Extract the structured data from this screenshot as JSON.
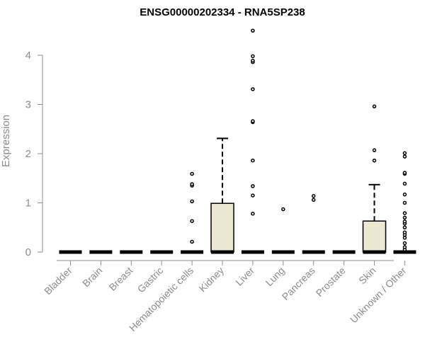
{
  "chart_data": {
    "type": "boxplot",
    "title": "ENSG00000202334 - RNA5SP238",
    "ylabel": "Expression",
    "ylim": [
      0,
      4.5
    ],
    "yticks": [
      0,
      1,
      2,
      3,
      4
    ],
    "categories": [
      "Bladder",
      "Brain",
      "Breast",
      "Gastric",
      "Hematopoietic cells",
      "Kidney",
      "Liver",
      "Lung",
      "Pancreas",
      "Prostate",
      "Skin",
      "Unknown / Other"
    ],
    "boxes": [
      {
        "min": 0,
        "q1": 0,
        "median": 0,
        "q3": 0,
        "max": 0,
        "outliers": []
      },
      {
        "min": 0,
        "q1": 0,
        "median": 0,
        "q3": 0,
        "max": 0,
        "outliers": []
      },
      {
        "min": 0,
        "q1": 0,
        "median": 0,
        "q3": 0,
        "max": 0,
        "outliers": []
      },
      {
        "min": 0,
        "q1": 0,
        "median": 0,
        "q3": 0,
        "max": 0,
        "outliers": []
      },
      {
        "min": 0,
        "q1": 0,
        "median": 0,
        "q3": 0,
        "max": 0,
        "outliers": [
          0.21,
          0.63,
          1.03,
          1.35,
          1.38,
          1.59
        ]
      },
      {
        "min": 0,
        "q1": 0,
        "median": 0,
        "q3": 0.99,
        "max": 2.31,
        "outliers": []
      },
      {
        "min": 0,
        "q1": 0,
        "median": 0,
        "q3": 0,
        "max": 0,
        "outliers": [
          0.78,
          1.15,
          1.34,
          1.86,
          2.64,
          2.66,
          3.31,
          3.86,
          3.89,
          3.98,
          4.5
        ]
      },
      {
        "min": 0,
        "q1": 0,
        "median": 0,
        "q3": 0,
        "max": 0,
        "outliers": [
          0.87
        ]
      },
      {
        "min": 0,
        "q1": 0,
        "median": 0,
        "q3": 0,
        "max": 0,
        "outliers": [
          1.06,
          1.14
        ]
      },
      {
        "min": 0,
        "q1": 0,
        "median": 0,
        "q3": 0,
        "max": 0,
        "outliers": []
      },
      {
        "min": 0,
        "q1": 0,
        "median": 0,
        "q3": 0.63,
        "max": 1.37,
        "outliers": [
          1.86,
          2.07,
          2.96
        ]
      },
      {
        "min": 0,
        "q1": 0,
        "median": 0,
        "q3": 0,
        "max": 0,
        "outliers": [
          0.05,
          0.1,
          0.18,
          0.29,
          0.35,
          0.4,
          0.5,
          0.58,
          0.62,
          0.7,
          0.79,
          1.0,
          1.17,
          1.39,
          1.59,
          1.61,
          1.94,
          2.01
        ]
      }
    ],
    "box_fill": "#ede8d0",
    "axis_color": "#8c8c8c",
    "grid": false,
    "legend": "none"
  }
}
